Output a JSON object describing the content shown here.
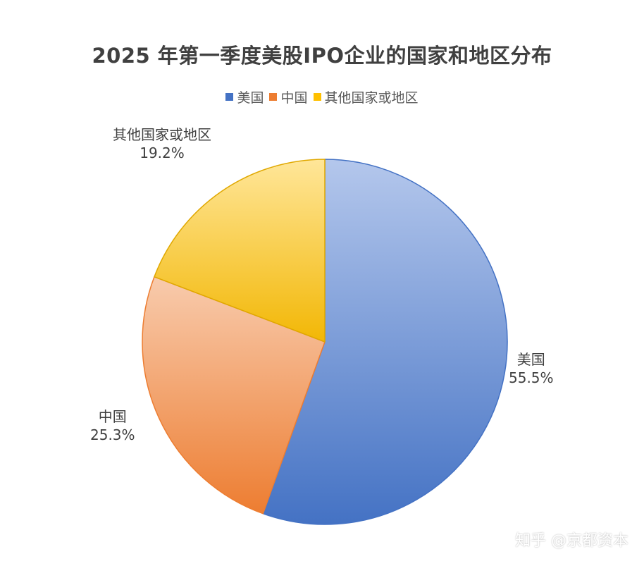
{
  "title": "2025 年第一季度美股IPO企业的国家和地区分布",
  "colors": {
    "us": "#4472C4",
    "china": "#ED7D31",
    "other": "#FFC000"
  },
  "chart_data": {
    "type": "pie",
    "title": "2025 年第一季度美股IPO企业的国家和地区分布",
    "legend_position": "top",
    "slices": [
      {
        "label": "美国",
        "value": 55.5,
        "display": "55.5%",
        "color": "#4472C4"
      },
      {
        "label": "中国",
        "value": 25.3,
        "display": "25.3%",
        "color": "#ED7D31"
      },
      {
        "label": "其他国家或地区",
        "value": 19.2,
        "display": "19.2%",
        "color": "#FFC000"
      }
    ]
  },
  "watermark": "知乎 @京都资本"
}
